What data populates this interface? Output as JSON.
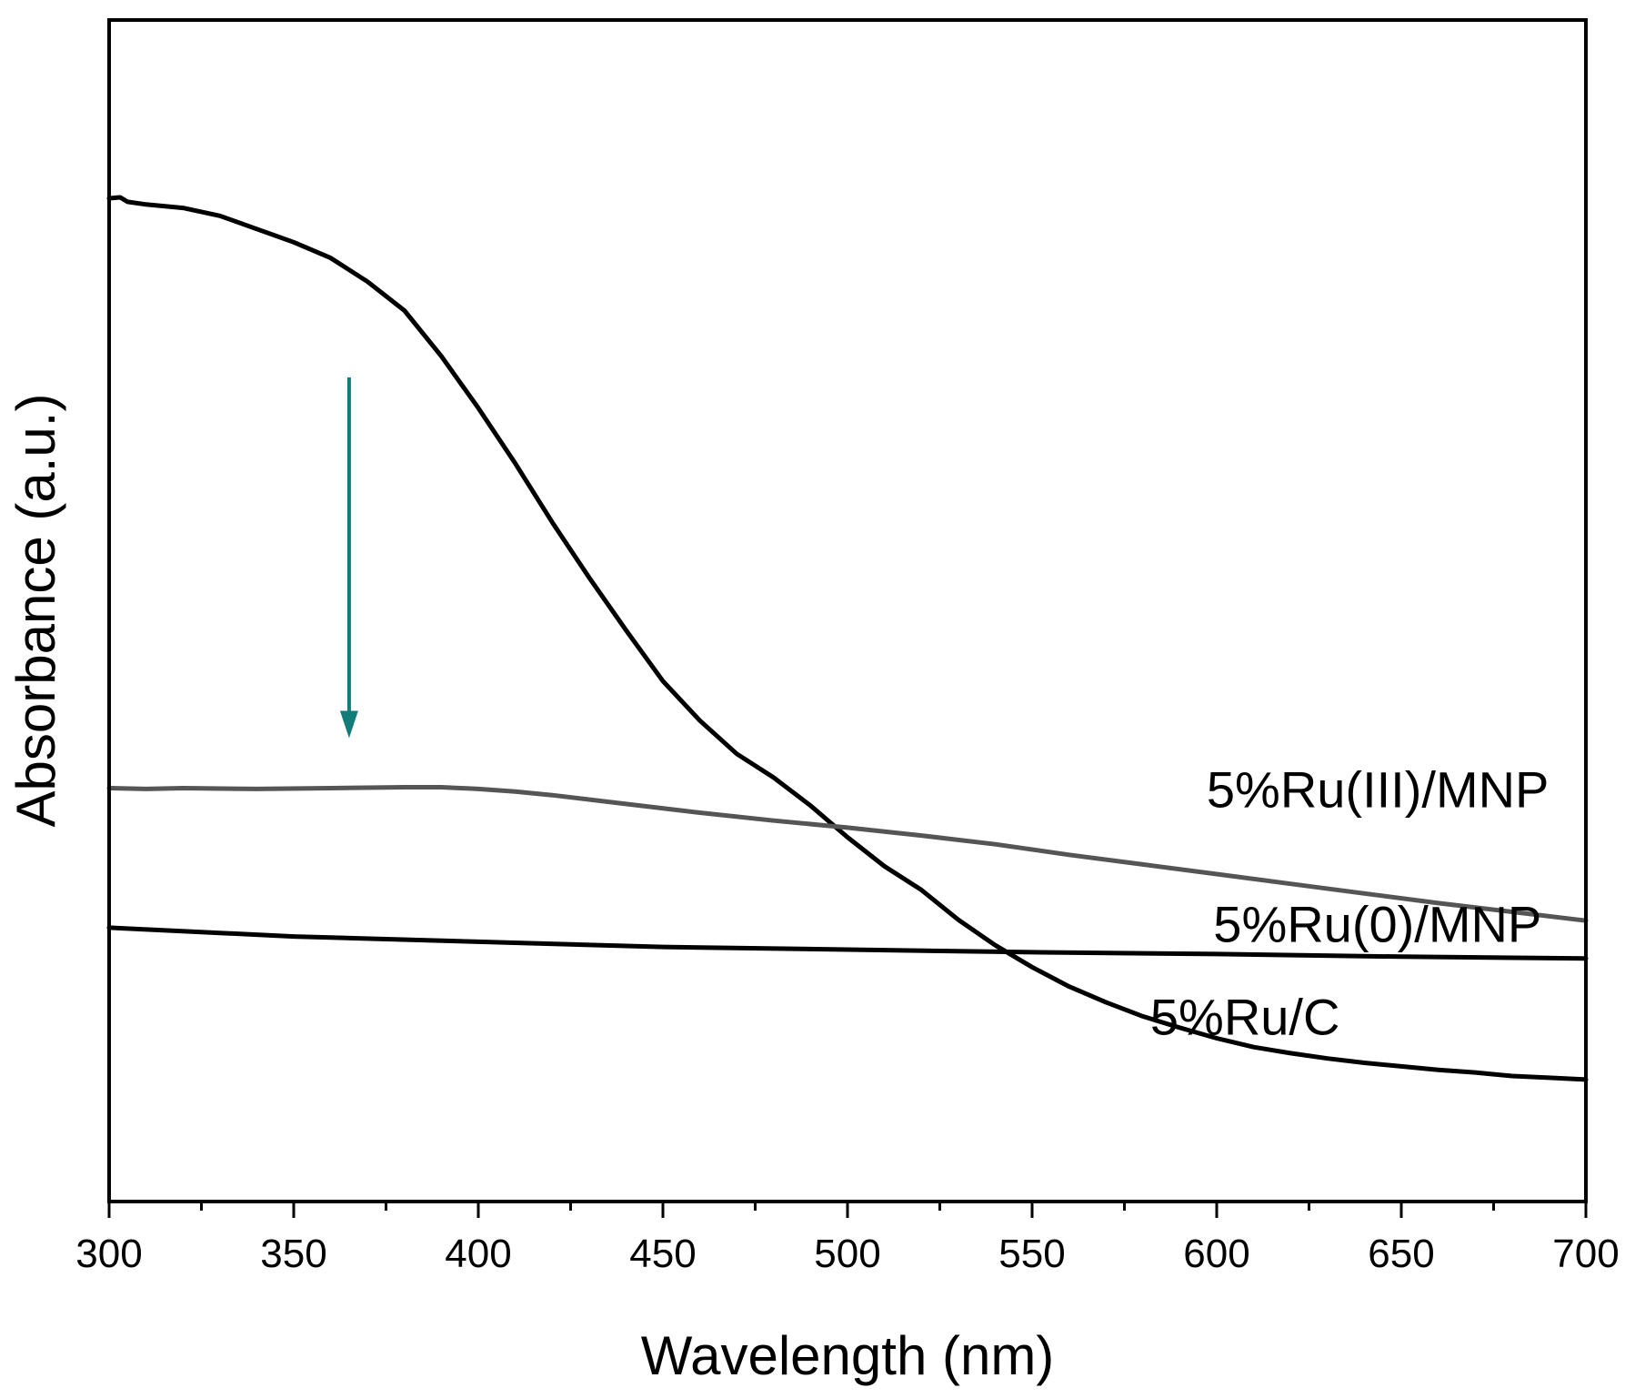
{
  "chart_data": {
    "type": "line",
    "title": "",
    "xlabel": "Wavelength (nm)",
    "ylabel": "Absorbance (a.u.)",
    "xlim": [
      300,
      700
    ],
    "ylim": [
      0,
      1.0
    ],
    "x_major_ticks": [
      300,
      350,
      400,
      450,
      500,
      550,
      600,
      650,
      700
    ],
    "x_minor_ticks": [
      325,
      375,
      425,
      475,
      525,
      575,
      625,
      675
    ],
    "y_tick_labels_shown": false,
    "grid": false,
    "legend": "none",
    "arrow": {
      "x": 365,
      "y_from": 0.796,
      "y_to": 0.385,
      "color": "#127c78",
      "direction": "down"
    },
    "series": [
      {
        "name": "5%Ru(III)/MNP",
        "color": "#000000",
        "x": [
          300,
          303,
          305,
          310,
          320,
          330,
          340,
          350,
          360,
          370,
          380,
          390,
          400,
          410,
          420,
          430,
          440,
          450,
          460,
          470,
          480,
          490,
          500,
          510,
          520,
          530,
          540,
          550,
          560,
          570,
          580,
          590,
          600,
          610,
          620,
          630,
          640,
          650,
          660,
          670,
          680,
          690,
          700
        ],
        "values": [
          1.0,
          1.001,
          0.996,
          0.993,
          0.989,
          0.98,
          0.965,
          0.95,
          0.932,
          0.905,
          0.872,
          0.82,
          0.761,
          0.698,
          0.631,
          0.568,
          0.508,
          0.45,
          0.405,
          0.367,
          0.34,
          0.308,
          0.272,
          0.239,
          0.212,
          0.178,
          0.149,
          0.124,
          0.102,
          0.084,
          0.068,
          0.055,
          0.043,
          0.033,
          0.026,
          0.02,
          0.015,
          0.011,
          0.007,
          0.004,
          0.0,
          -0.002,
          -0.004
        ]
      },
      {
        "name": "5%Ru(0)/MNP",
        "color": "#555555",
        "x": [
          300,
          310,
          320,
          340,
          360,
          380,
          390,
          400,
          410,
          420,
          440,
          460,
          480,
          500,
          520,
          540,
          560,
          580,
          600,
          620,
          640,
          660,
          680,
          700
        ],
        "values": [
          0.328,
          0.327,
          0.328,
          0.327,
          0.328,
          0.329,
          0.329,
          0.327,
          0.324,
          0.32,
          0.31,
          0.3,
          0.291,
          0.283,
          0.274,
          0.264,
          0.252,
          0.241,
          0.23,
          0.219,
          0.208,
          0.197,
          0.187,
          0.177
        ]
      },
      {
        "name": "5%Ru/C",
        "color": "#000000",
        "x": [
          300,
          350,
          400,
          450,
          500,
          550,
          600,
          650,
          700
        ],
        "values": [
          0.169,
          0.159,
          0.153,
          0.147,
          0.144,
          0.141,
          0.139,
          0.136,
          0.134
        ]
      }
    ],
    "series_labels": [
      {
        "text": "5%Ru(III)/MNP",
        "anchor_x": 690,
        "anchor_y": 0.306
      },
      {
        "text": "5%Ru(0)/MNP",
        "anchor_x": 688,
        "anchor_y": 0.153
      },
      {
        "text": "5%Ru/C",
        "anchor_x": 582,
        "anchor_y": 0.047
      }
    ]
  }
}
